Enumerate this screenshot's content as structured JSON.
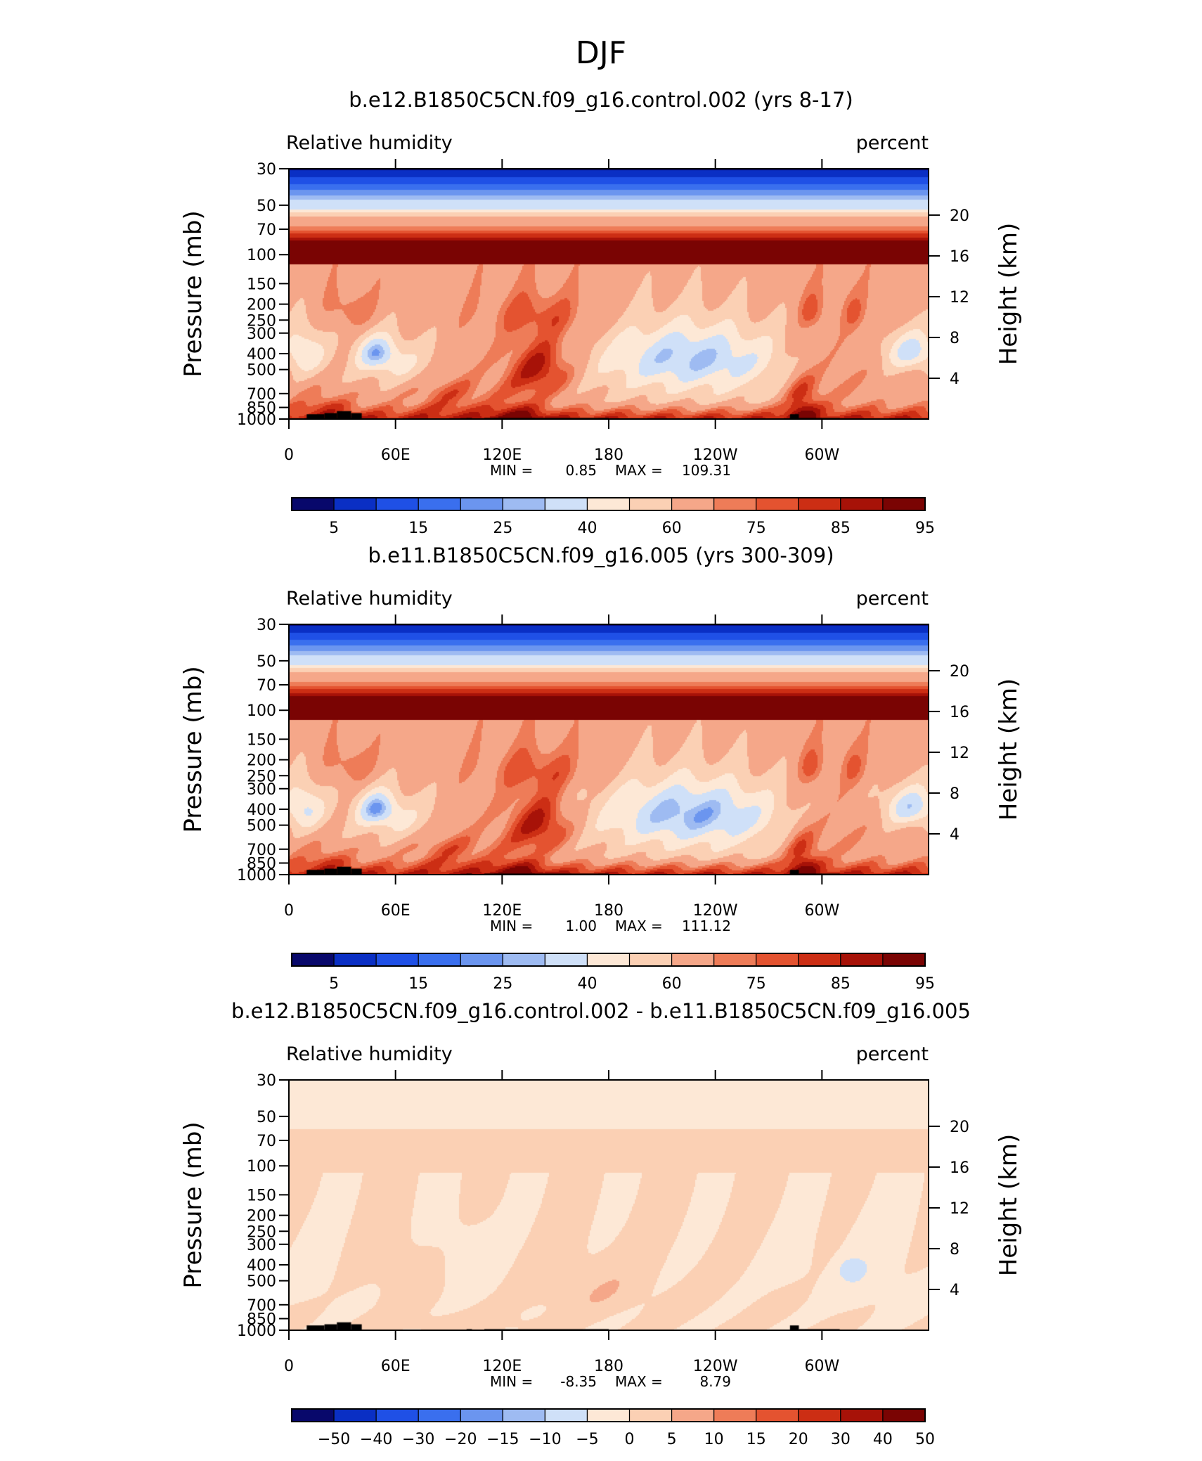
{
  "page_title": "DJF",
  "chart_data": [
    {
      "type": "heatmap",
      "title": "b.e12.B1850C5CN.f09_g16.control.002 (yrs 8-17)",
      "left_label": "Relative humidity",
      "right_label": "percent",
      "ylabel": "Pressure (mb)",
      "ylabel2": "Height (km)",
      "x_ticks": [
        "0",
        "60E",
        "120E",
        "180",
        "120W",
        "60W"
      ],
      "y_ticks": [
        "30",
        "50",
        "70",
        "100",
        "150",
        "200",
        "250",
        "300",
        "400",
        "500",
        "700",
        "850",
        "1000"
      ],
      "y2_ticks": [
        "20",
        "16",
        "12",
        "8",
        "4"
      ],
      "min_label": "MIN =",
      "min_value": "0.85",
      "max_label": "MAX =",
      "max_value": "109.31",
      "colorbar_labels": [
        "5",
        "15",
        "25",
        "40",
        "60",
        "75",
        "85",
        "95"
      ],
      "field": "rh"
    },
    {
      "type": "heatmap",
      "title": "b.e11.B1850C5CN.f09_g16.005 (yrs 300-309)",
      "left_label": "Relative humidity",
      "right_label": "percent",
      "ylabel": "Pressure (mb)",
      "ylabel2": "Height (km)",
      "x_ticks": [
        "0",
        "60E",
        "120E",
        "180",
        "120W",
        "60W"
      ],
      "y_ticks": [
        "30",
        "50",
        "70",
        "100",
        "150",
        "200",
        "250",
        "300",
        "400",
        "500",
        "700",
        "850",
        "1000"
      ],
      "y2_ticks": [
        "20",
        "16",
        "12",
        "8",
        "4"
      ],
      "min_label": "MIN =",
      "min_value": "1.00",
      "max_label": "MAX =",
      "max_value": "111.12",
      "colorbar_labels": [
        "5",
        "15",
        "25",
        "40",
        "60",
        "75",
        "85",
        "95"
      ],
      "field": "rh"
    },
    {
      "type": "heatmap",
      "title": "b.e12.B1850C5CN.f09_g16.control.002 - b.e11.B1850C5CN.f09_g16.005",
      "left_label": "Relative humidity",
      "right_label": "percent",
      "ylabel": "Pressure (mb)",
      "ylabel2": "Height (km)",
      "x_ticks": [
        "0",
        "60E",
        "120E",
        "180",
        "120W",
        "60W"
      ],
      "y_ticks": [
        "30",
        "50",
        "70",
        "100",
        "150",
        "200",
        "250",
        "300",
        "400",
        "500",
        "700",
        "850",
        "1000"
      ],
      "y2_ticks": [
        "20",
        "16",
        "12",
        "8",
        "4"
      ],
      "min_label": "MIN =",
      "min_value": "-8.35",
      "max_label": "MAX =",
      "max_value": "8.79",
      "colorbar_labels": [
        "−50",
        "−40",
        "−30",
        "−20",
        "−15",
        "−10",
        "−5",
        "0",
        "5",
        "10",
        "15",
        "20",
        "30",
        "40",
        "50"
      ],
      "field": "diff"
    }
  ],
  "colors": {
    "colorbar": [
      "#08086b",
      "#0a2fc4",
      "#1f50e6",
      "#3a6fee",
      "#6b95ef",
      "#9ebbf2",
      "#cfe0f8",
      "#fde8d6",
      "#fbd0b4",
      "#f5a789",
      "#ee7c58",
      "#e45330",
      "#cc2e14",
      "#a71208",
      "#7a0403"
    ],
    "terrain": "#000000"
  }
}
